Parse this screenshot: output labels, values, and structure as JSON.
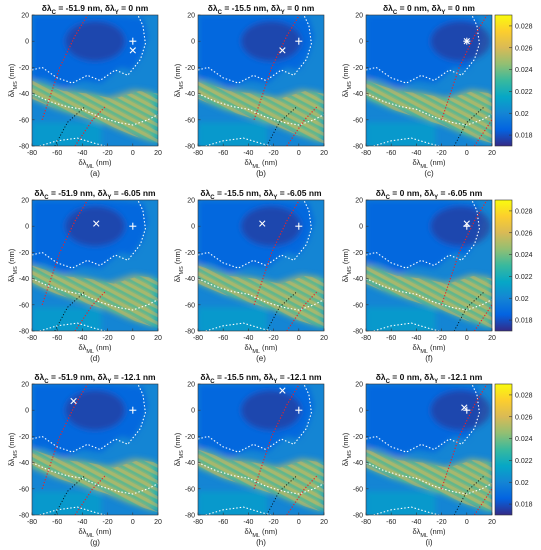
{
  "chart_data": {
    "type": "heatmap",
    "layout": {
      "rows": 3,
      "cols": 3
    },
    "xlabel_base": "δλ",
    "xlabel_sub": "ML",
    "xlabel_unit": " (nm)",
    "ylabel_base": "δλ",
    "ylabel_sub": "MS",
    "ylabel_unit": " (nm)",
    "xlim": [
      -80,
      20
    ],
    "ylim": [
      -80,
      20
    ],
    "xticks": [
      -80,
      -60,
      -40,
      -20,
      0,
      20
    ],
    "yticks": [
      -80,
      -60,
      -40,
      -20,
      0,
      20
    ],
    "colorbar": {
      "range": [
        0.017,
        0.029
      ],
      "ticks": [
        0.018,
        0.02,
        0.022,
        0.024,
        0.026,
        0.028
      ],
      "tick_labels": [
        "0.018",
        "0.02",
        "0.022",
        "0.024",
        "0.026",
        "0.028"
      ],
      "colormap": "parula",
      "colors": [
        "#352a87",
        "#0363e1",
        "#1485d4",
        "#06a7c6",
        "#38b99e",
        "#92bf73",
        "#d9ba56",
        "#fcce2e",
        "#f9fb0e"
      ]
    },
    "contour_colors": {
      "white": "#ffffff",
      "red": "#e3252b",
      "black": "#000000"
    },
    "panels": [
      {
        "label": "(a)",
        "dC": "-51.9",
        "dY": "0",
        "plus": [
          0,
          0
        ],
        "cross": [
          0,
          -7
        ]
      },
      {
        "label": "(b)",
        "dC": "-15.5",
        "dY": "0",
        "plus": [
          0,
          0
        ],
        "cross": [
          -13,
          -7
        ]
      },
      {
        "label": "(c)",
        "dC": "0",
        "dY": "0",
        "plus": [
          0,
          0
        ],
        "cross": [
          0,
          0
        ]
      },
      {
        "label": "(d)",
        "dC": "-51.9",
        "dY": "-6.05",
        "plus": [
          0,
          0
        ],
        "cross": [
          -29,
          2
        ]
      },
      {
        "label": "(e)",
        "dC": "-15.5",
        "dY": "-6.05",
        "plus": [
          0,
          0
        ],
        "cross": [
          -29,
          2
        ]
      },
      {
        "label": "(f)",
        "dC": "0",
        "dY": "-6.05",
        "plus": [
          0,
          0
        ],
        "cross": [
          0,
          2
        ]
      },
      {
        "label": "(g)",
        "dC": "-51.9",
        "dY": "-12.1",
        "plus": [
          0,
          0
        ],
        "cross": [
          -47,
          7
        ]
      },
      {
        "label": "(h)",
        "dC": "-15.5",
        "dY": "-12.1",
        "plus": [
          0,
          0
        ],
        "cross": [
          -13,
          15
        ]
      },
      {
        "label": "(i)",
        "dC": "0",
        "dY": "-12.1",
        "plus": [
          0,
          0
        ],
        "cross": [
          -2,
          2
        ]
      }
    ]
  }
}
